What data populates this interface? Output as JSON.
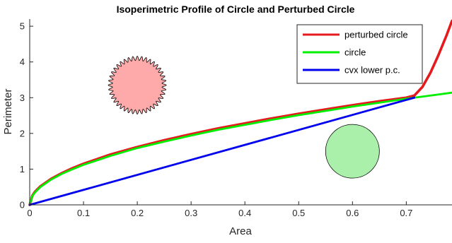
{
  "chart_data": {
    "type": "line",
    "title": "Isoperimetric Profile of Circle and Perturbed Circle",
    "xlabel": "Area",
    "ylabel": "Perimeter",
    "xlim": [
      0,
      0.785
    ],
    "ylim": [
      0,
      5.2
    ],
    "xticks": [
      0,
      0.1,
      0.2,
      0.3,
      0.4,
      0.5,
      0.6,
      0.7
    ],
    "xtick_labels": [
      "0",
      "0.1",
      "0.2",
      "0.3",
      "0.4",
      "0.5",
      "0.6",
      "0.7"
    ],
    "yticks": [
      0,
      1,
      2,
      3,
      4,
      5
    ],
    "ytick_labels": [
      "0",
      "1",
      "2",
      "3",
      "4",
      "5"
    ],
    "grid": false,
    "legend_position": "top-right",
    "series": [
      {
        "name": "perturbed circle",
        "color": "#e41a1c",
        "x": [
          0,
          0.005,
          0.01,
          0.02,
          0.04,
          0.06,
          0.08,
          0.1,
          0.15,
          0.2,
          0.25,
          0.3,
          0.35,
          0.4,
          0.45,
          0.5,
          0.55,
          0.6,
          0.65,
          0.7,
          0.715,
          0.73,
          0.745,
          0.76,
          0.775,
          0.785
        ],
        "y": [
          0,
          0.26,
          0.37,
          0.52,
          0.73,
          0.89,
          1.03,
          1.15,
          1.41,
          1.62,
          1.81,
          1.98,
          2.14,
          2.28,
          2.42,
          2.55,
          2.67,
          2.79,
          2.9,
          3.0,
          3.06,
          3.3,
          3.7,
          4.2,
          4.75,
          5.15
        ]
      },
      {
        "name": "circle",
        "color": "#00ee00",
        "x": [
          0,
          0.005,
          0.01,
          0.02,
          0.04,
          0.06,
          0.08,
          0.1,
          0.15,
          0.2,
          0.25,
          0.3,
          0.35,
          0.4,
          0.45,
          0.5,
          0.55,
          0.6,
          0.65,
          0.7,
          0.75,
          0.785
        ],
        "y": [
          0,
          0.25,
          0.35,
          0.5,
          0.71,
          0.87,
          1.0,
          1.12,
          1.37,
          1.59,
          1.77,
          1.94,
          2.1,
          2.24,
          2.38,
          2.51,
          2.63,
          2.75,
          2.86,
          2.97,
          3.07,
          3.14
        ]
      },
      {
        "name": "cvx lower p.c.",
        "color": "#0000ee",
        "x": [
          0,
          0.715
        ],
        "y": [
          0,
          3.0
        ]
      }
    ],
    "insets": [
      {
        "shape": "perturbed circle",
        "fill": "#ffaaaa",
        "stroke": "#000000",
        "center": [
          0.2,
          3.35
        ],
        "radius_x": 0.05,
        "lobes": 40,
        "amplitude": 0.08
      },
      {
        "shape": "circle",
        "fill": "#aaf0aa",
        "stroke": "#000000",
        "center": [
          0.6,
          1.5
        ],
        "radius_x": 0.05,
        "lobes": 0,
        "amplitude": 0
      }
    ]
  }
}
